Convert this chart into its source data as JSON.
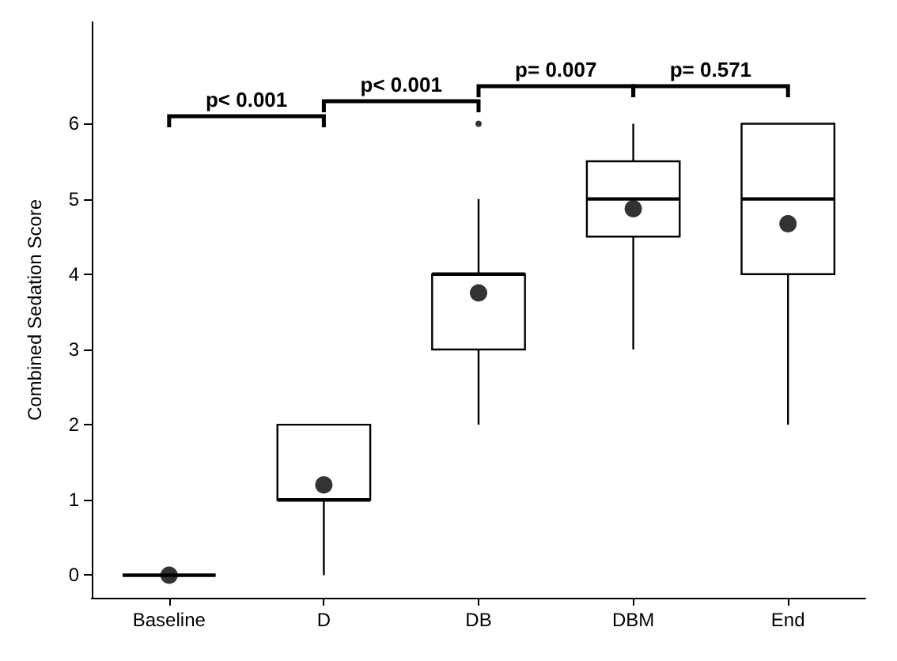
{
  "chart_data": {
    "type": "box",
    "ylabel": "Combined Sedation Score",
    "categories": [
      "Baseline",
      "D",
      "DB",
      "DBM",
      "End"
    ],
    "boxes": [
      {
        "low": 0,
        "q1": 0,
        "median": 0,
        "q3": 0,
        "high": 0,
        "mean": 0
      },
      {
        "low": 0,
        "q1": 1,
        "median": 1,
        "q3": 2,
        "high": 2,
        "mean": 1.2
      },
      {
        "low": 2,
        "q1": 3,
        "median": 4,
        "q3": 4,
        "high": 5,
        "mean": 3.75,
        "outliers": [
          6
        ]
      },
      {
        "low": 3,
        "q1": 4.5,
        "median": 5,
        "q3": 5.5,
        "high": 6,
        "mean": 4.87
      },
      {
        "low": 2,
        "q1": 4,
        "median": 5,
        "q3": 6,
        "high": 6,
        "mean": 4.67
      }
    ],
    "ylim": [
      -0.3,
      7.35
    ],
    "yticks": [
      0,
      1,
      2,
      3,
      4,
      5,
      6
    ],
    "annotations": [
      "p< 0.001",
      "p< 0.001",
      "p= 0.007",
      "p= 0.571"
    ]
  }
}
